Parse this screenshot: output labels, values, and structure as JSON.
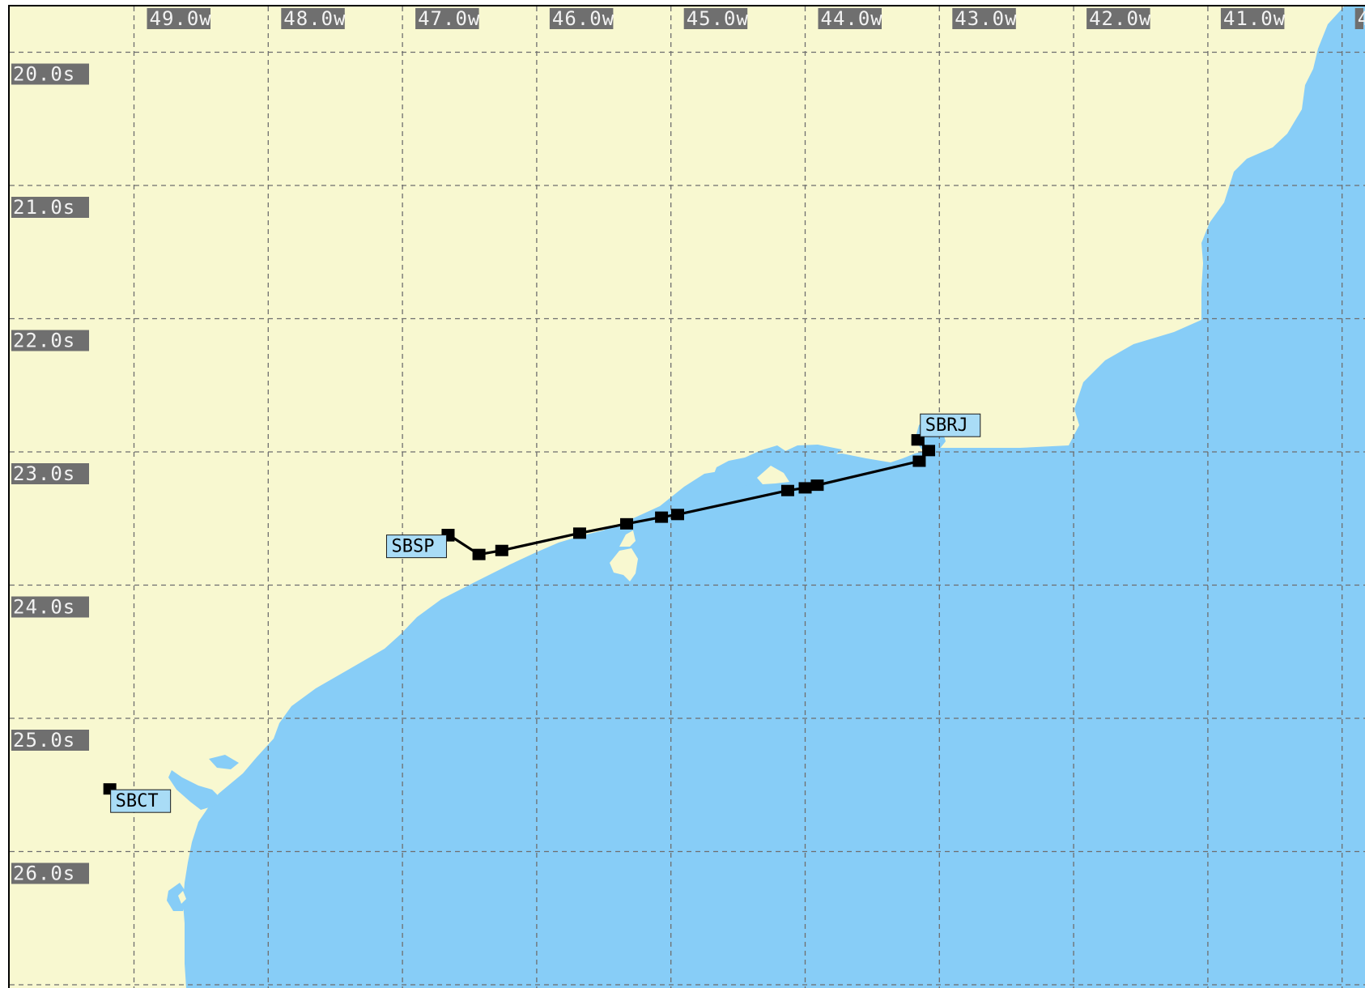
{
  "map": {
    "colors": {
      "land": "#f8f8d0",
      "water": "#87cdf7",
      "grid": "#6e6e6e",
      "route": "#000000",
      "axis_label_bg": "#6f6f6f",
      "waypoint_label_bg": "#a9dcf6"
    },
    "lon_labels": [
      "49.0w",
      "48.0w",
      "47.0w",
      "46.0w",
      "45.0w",
      "44.0w",
      "43.0w",
      "42.0w",
      "41.0w",
      "4"
    ],
    "lat_labels": [
      "20.0s",
      "21.0s",
      "22.0s",
      "23.0s",
      "24.0s",
      "25.0s",
      "26.0s"
    ],
    "airports": [
      {
        "id": "SBSP",
        "lat": -23.63,
        "lon": -46.66
      },
      {
        "id": "SBRJ",
        "lat": -22.91,
        "lon": -43.16
      },
      {
        "id": "SBCT",
        "lat": -25.53,
        "lon": -49.18
      }
    ],
    "route": [
      {
        "lon": -46.66,
        "lat": -23.62
      },
      {
        "lon": -46.43,
        "lat": -23.77
      },
      {
        "lon": -46.26,
        "lat": -23.74
      },
      {
        "lon": -45.68,
        "lat": -23.61
      },
      {
        "lon": -45.33,
        "lat": -23.54
      },
      {
        "lon": -45.07,
        "lat": -23.49
      },
      {
        "lon": -44.95,
        "lat": -23.47
      },
      {
        "lon": -44.13,
        "lat": -23.29
      },
      {
        "lon": -44.0,
        "lat": -23.27
      },
      {
        "lon": -43.91,
        "lat": -23.25
      },
      {
        "lon": -43.15,
        "lat": -23.07
      },
      {
        "lon": -43.08,
        "lat": -22.99
      },
      {
        "lon": -43.16,
        "lat": -22.91
      }
    ]
  }
}
